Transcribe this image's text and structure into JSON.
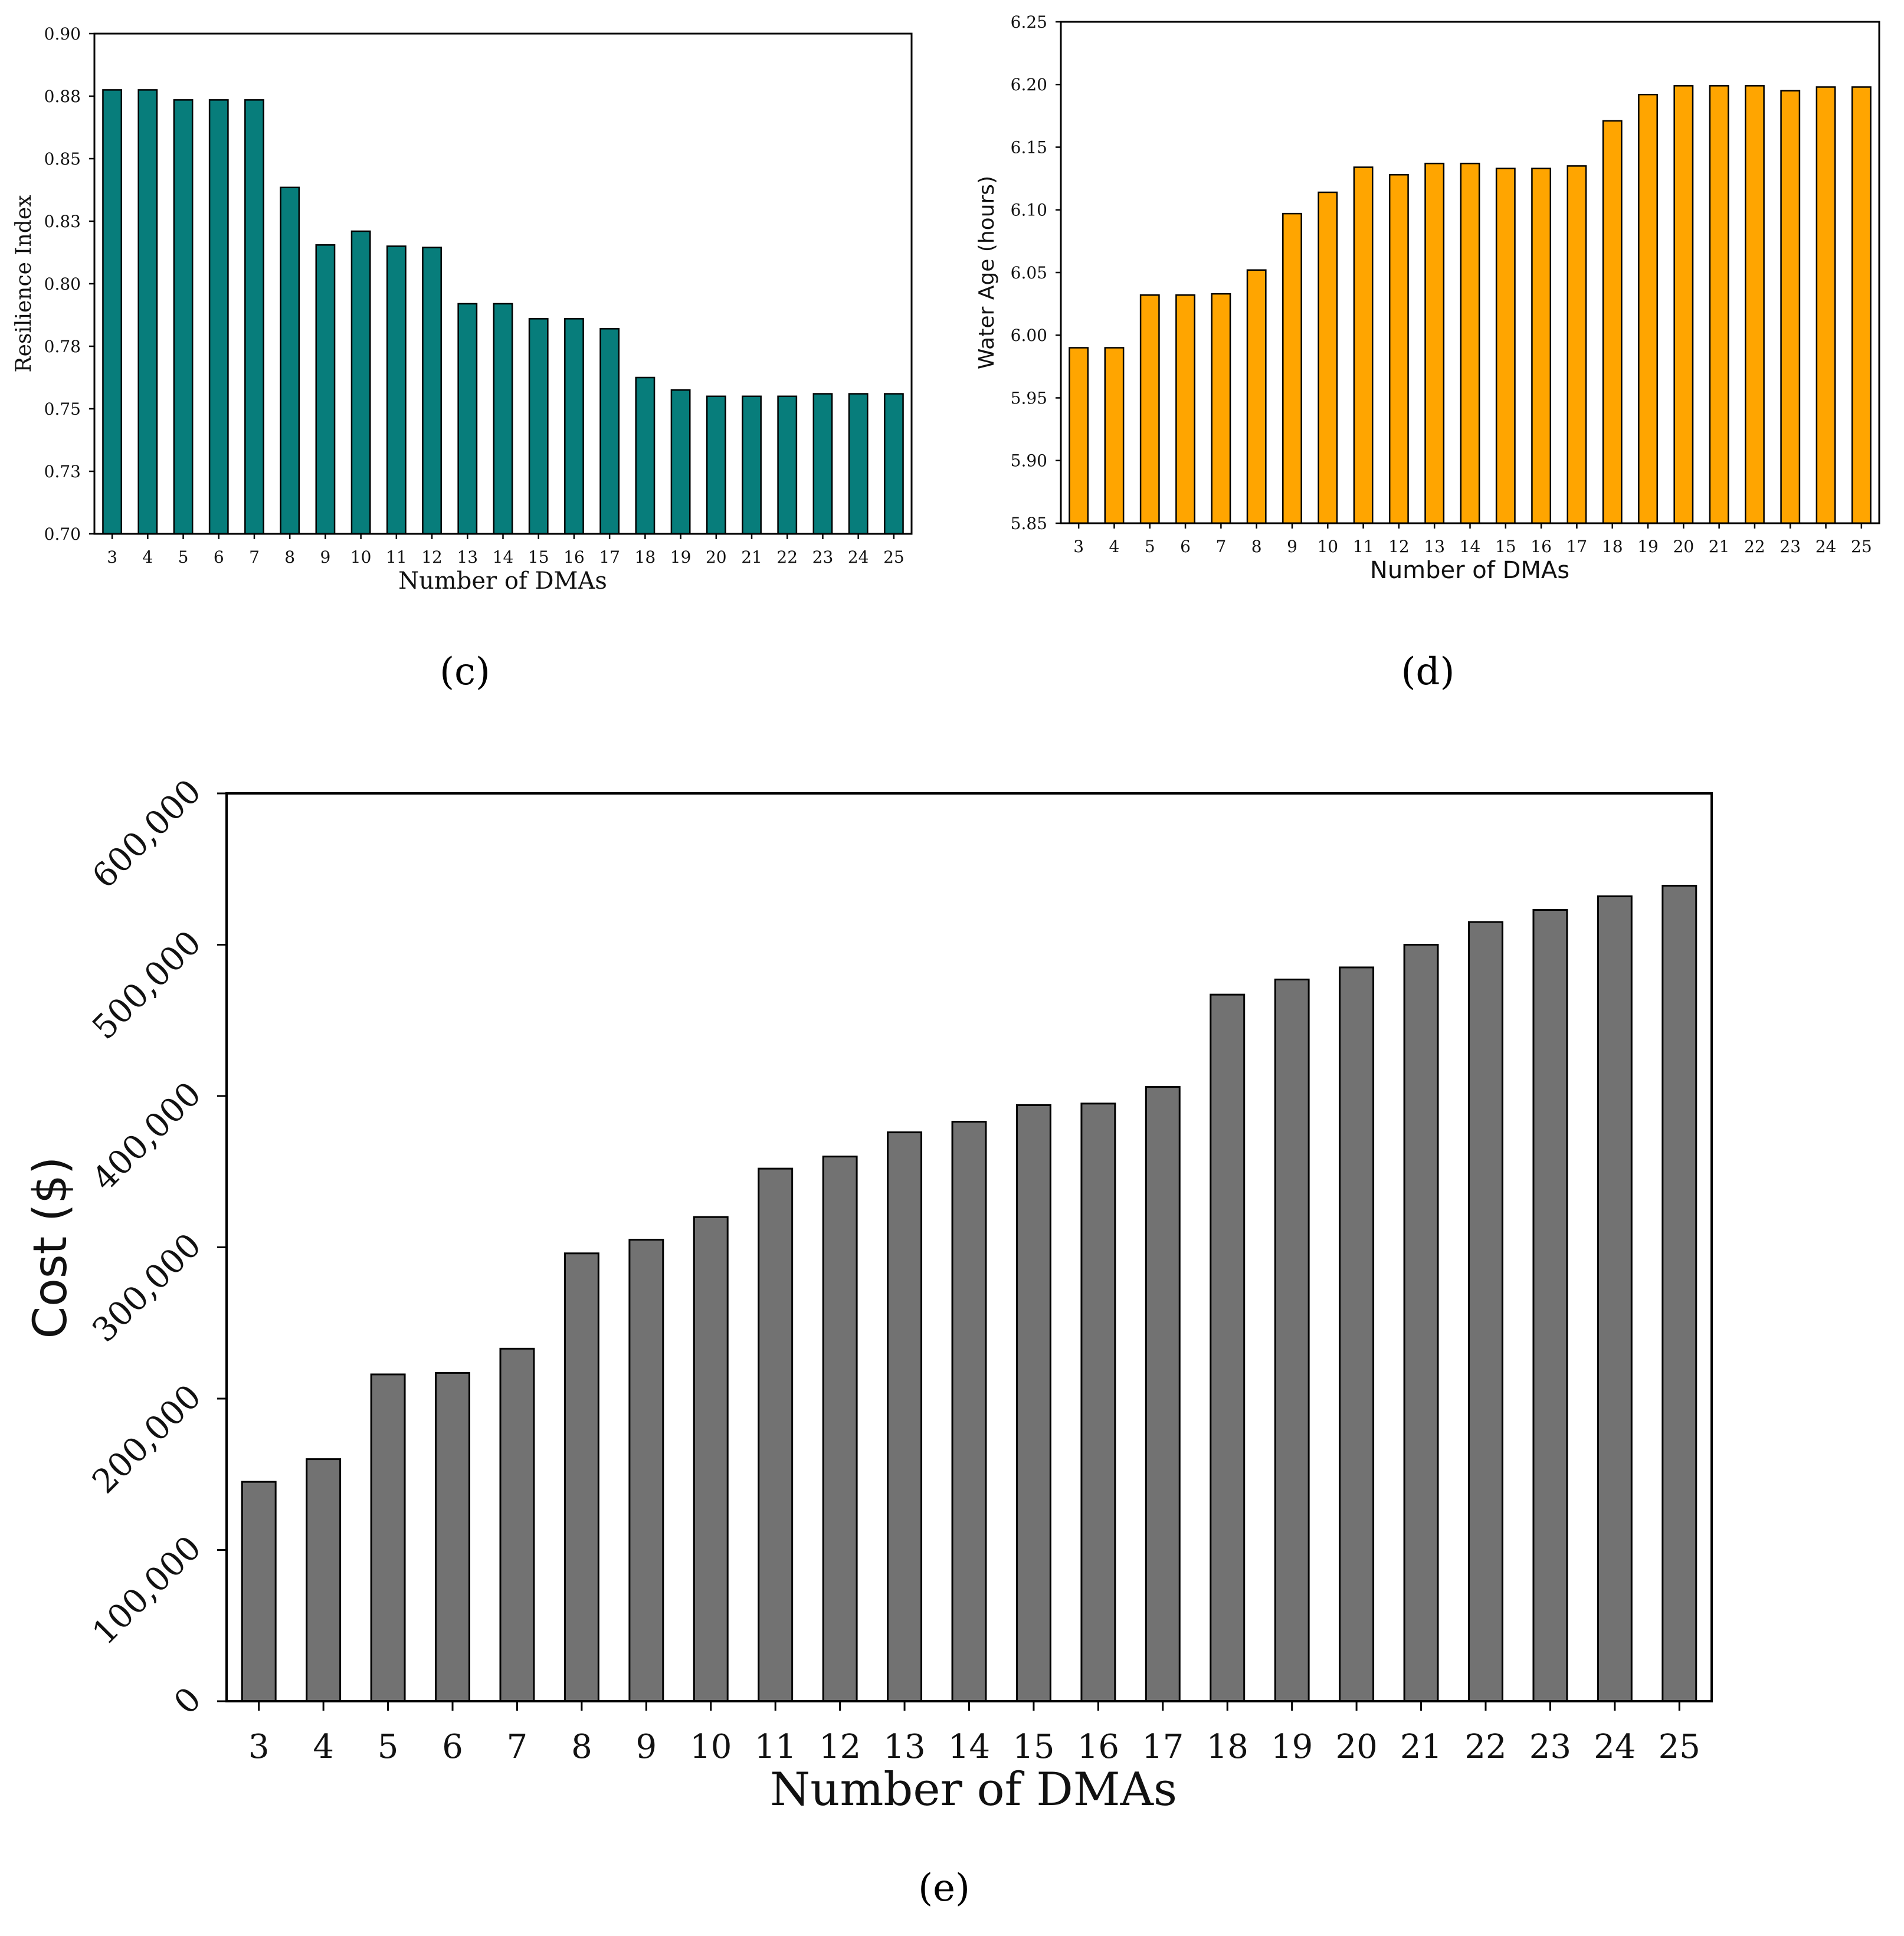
{
  "chart_data": [
    {
      "type": "bar",
      "panel_label": "c",
      "xlabel": "Number of DMAs",
      "ylabel": "Resilience Index",
      "ylim": [
        0.7,
        0.9
      ],
      "yticks": [
        "0.70",
        "0.73",
        "0.75",
        "0.78",
        "0.80",
        "0.83",
        "0.85",
        "0.88",
        "0.90"
      ],
      "ytick_values": [
        0.7,
        0.725,
        0.75,
        0.775,
        0.8,
        0.825,
        0.85,
        0.875,
        0.9
      ],
      "categories": [
        "3",
        "4",
        "5",
        "6",
        "7",
        "8",
        "9",
        "10",
        "11",
        "12",
        "13",
        "14",
        "15",
        "16",
        "17",
        "18",
        "19",
        "20",
        "21",
        "22",
        "23",
        "24",
        "25"
      ],
      "values": [
        0.8775,
        0.8775,
        0.8735,
        0.8735,
        0.8735,
        0.8385,
        0.8155,
        0.821,
        0.815,
        0.8145,
        0.792,
        0.792,
        0.786,
        0.786,
        0.782,
        0.7625,
        0.7575,
        0.755,
        0.755,
        0.755,
        0.756,
        0.756,
        0.756
      ],
      "color": "#077d7b"
    },
    {
      "type": "bar",
      "panel_label": "d",
      "xlabel": "Number of DMAs",
      "ylabel": "Water Age (hours)",
      "ylim": [
        5.85,
        6.25
      ],
      "yticks": [
        "5.85",
        "5.90",
        "5.95",
        "6.00",
        "6.05",
        "6.10",
        "6.15",
        "6.20",
        "6.25"
      ],
      "ytick_values": [
        5.85,
        5.9,
        5.95,
        6.0,
        6.05,
        6.1,
        6.15,
        6.2,
        6.25
      ],
      "categories": [
        "3",
        "4",
        "5",
        "6",
        "7",
        "8",
        "9",
        "10",
        "11",
        "12",
        "13",
        "14",
        "15",
        "16",
        "17",
        "18",
        "19",
        "20",
        "21",
        "22",
        "23",
        "24",
        "25"
      ],
      "values": [
        5.99,
        5.99,
        6.032,
        6.032,
        6.033,
        6.052,
        6.097,
        6.114,
        6.134,
        6.128,
        6.137,
        6.137,
        6.133,
        6.133,
        6.135,
        6.171,
        6.192,
        6.199,
        6.199,
        6.199,
        6.195,
        6.198,
        6.198
      ],
      "color": "#ffa500"
    },
    {
      "type": "bar",
      "panel_label": "e",
      "xlabel": "Number of DMAs",
      "ylabel": "Cost ($)",
      "ylim": [
        0,
        600000
      ],
      "yticks": [
        "0",
        "100,000",
        "200,000",
        "300,000",
        "400,000",
        "500,000",
        "600,000"
      ],
      "ytick_values": [
        0,
        100000,
        200000,
        300000,
        400000,
        500000,
        600000
      ],
      "categories": [
        "3",
        "4",
        "5",
        "6",
        "7",
        "8",
        "9",
        "10",
        "11",
        "12",
        "13",
        "14",
        "15",
        "16",
        "17",
        "18",
        "19",
        "20",
        "21",
        "22",
        "23",
        "24",
        "25"
      ],
      "values": [
        145000,
        160000,
        216000,
        217000,
        233000,
        296000,
        305000,
        320000,
        352000,
        360000,
        376000,
        383000,
        394000,
        395000,
        406000,
        467000,
        477000,
        485000,
        500000,
        515000,
        523000,
        532000,
        539000
      ],
      "color": "#727272"
    }
  ],
  "captions": {
    "c": "(c)",
    "d": "(d)",
    "e": "(e)"
  }
}
